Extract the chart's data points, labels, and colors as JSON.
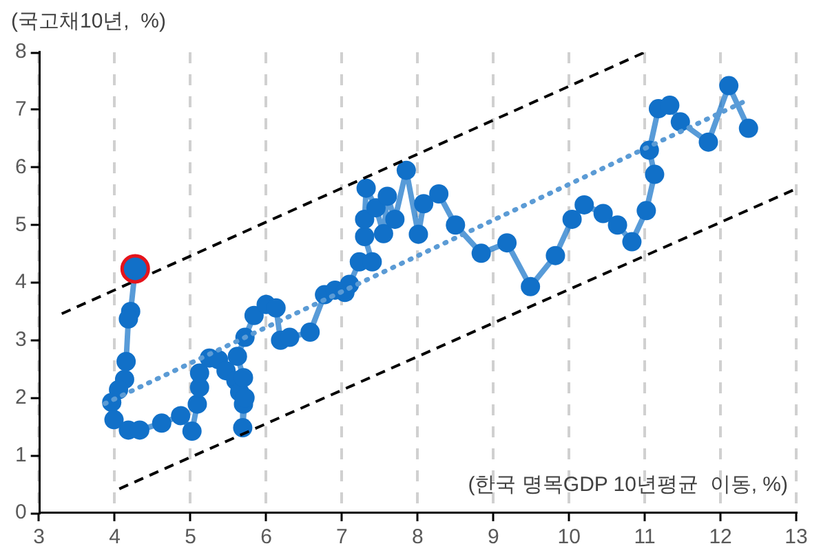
{
  "chart_data": {
    "type": "line",
    "ylabel": "(국고채10년,  %)",
    "xlabel": "(한국 명목GDP 10년평균  이동, %)",
    "xlim": [
      3,
      13
    ],
    "xticks": [
      3,
      4,
      5,
      6,
      7,
      8,
      9,
      10,
      11,
      12,
      13
    ],
    "ylim": [
      0,
      8
    ],
    "yticks": [
      0,
      1,
      2,
      3,
      4,
      5,
      6,
      7,
      8
    ],
    "grid": "x",
    "legend": false,
    "series": [
      {
        "marker": "circle",
        "color": "#1170c8",
        "x": [
          4.27,
          4.21,
          4.18,
          4.15,
          4.13,
          4.05,
          3.96,
          3.99,
          4.18,
          4.33,
          4.62,
          4.87,
          5.02,
          5.09,
          5.12,
          5.12,
          5.25,
          5.37,
          5.47,
          5.6,
          5.65,
          5.7,
          5.69,
          5.72,
          5.7,
          5.62,
          5.72,
          5.84,
          6.0,
          6.13,
          6.19,
          6.31,
          6.58,
          6.77,
          6.91,
          7.04,
          7.1,
          7.23,
          7.4,
          7.3,
          7.3,
          7.32,
          7.45,
          7.55,
          7.6,
          7.7,
          7.85,
          8.01,
          8.08,
          8.28,
          8.5,
          8.84,
          9.18,
          9.49,
          9.82,
          10.04,
          10.2,
          10.45,
          10.64,
          10.83,
          11.02,
          11.13,
          11.06,
          11.18,
          11.33,
          11.47,
          11.84,
          12.11,
          12.37
        ],
        "values": [
          4.24,
          3.5,
          3.37,
          2.63,
          2.32,
          2.14,
          1.92,
          1.62,
          1.44,
          1.44,
          1.56,
          1.69,
          1.42,
          1.89,
          2.18,
          2.43,
          2.69,
          2.66,
          2.47,
          2.3,
          2.1,
          1.89,
          1.48,
          2.0,
          2.35,
          2.72,
          3.05,
          3.43,
          3.62,
          3.56,
          3.0,
          3.05,
          3.14,
          3.79,
          3.87,
          3.83,
          3.97,
          4.36,
          4.36,
          4.8,
          5.1,
          5.64,
          5.3,
          4.85,
          5.5,
          5.1,
          5.95,
          4.84,
          5.37,
          5.54,
          5.0,
          4.51,
          4.69,
          3.93,
          4.47,
          5.1,
          5.35,
          5.2,
          5.0,
          4.71,
          5.25,
          5.88,
          6.3,
          7.02,
          7.08,
          6.79,
          6.44,
          7.42,
          6.68
        ]
      },
      {
        "marker": "none",
        "line_style": "dotted",
        "color": "#5b9bd5",
        "x": [
          3.87,
          12.34
        ],
        "values": [
          1.9,
          7.16
        ]
      },
      {
        "marker": "none",
        "line_style": "dashed",
        "color": "#000000",
        "x": [
          3.3,
          11.0
        ],
        "values": [
          3.46,
          8
        ]
      },
      {
        "marker": "none",
        "line_style": "dashed",
        "color": "#000000",
        "x": [
          4.06,
          13
        ],
        "values": [
          0.42,
          5.63
        ]
      },
      {
        "type": "scatter",
        "marker": "circle",
        "color": "#e5141c",
        "x": [
          4.27
        ],
        "values": [
          4.24
        ]
      }
    ]
  }
}
